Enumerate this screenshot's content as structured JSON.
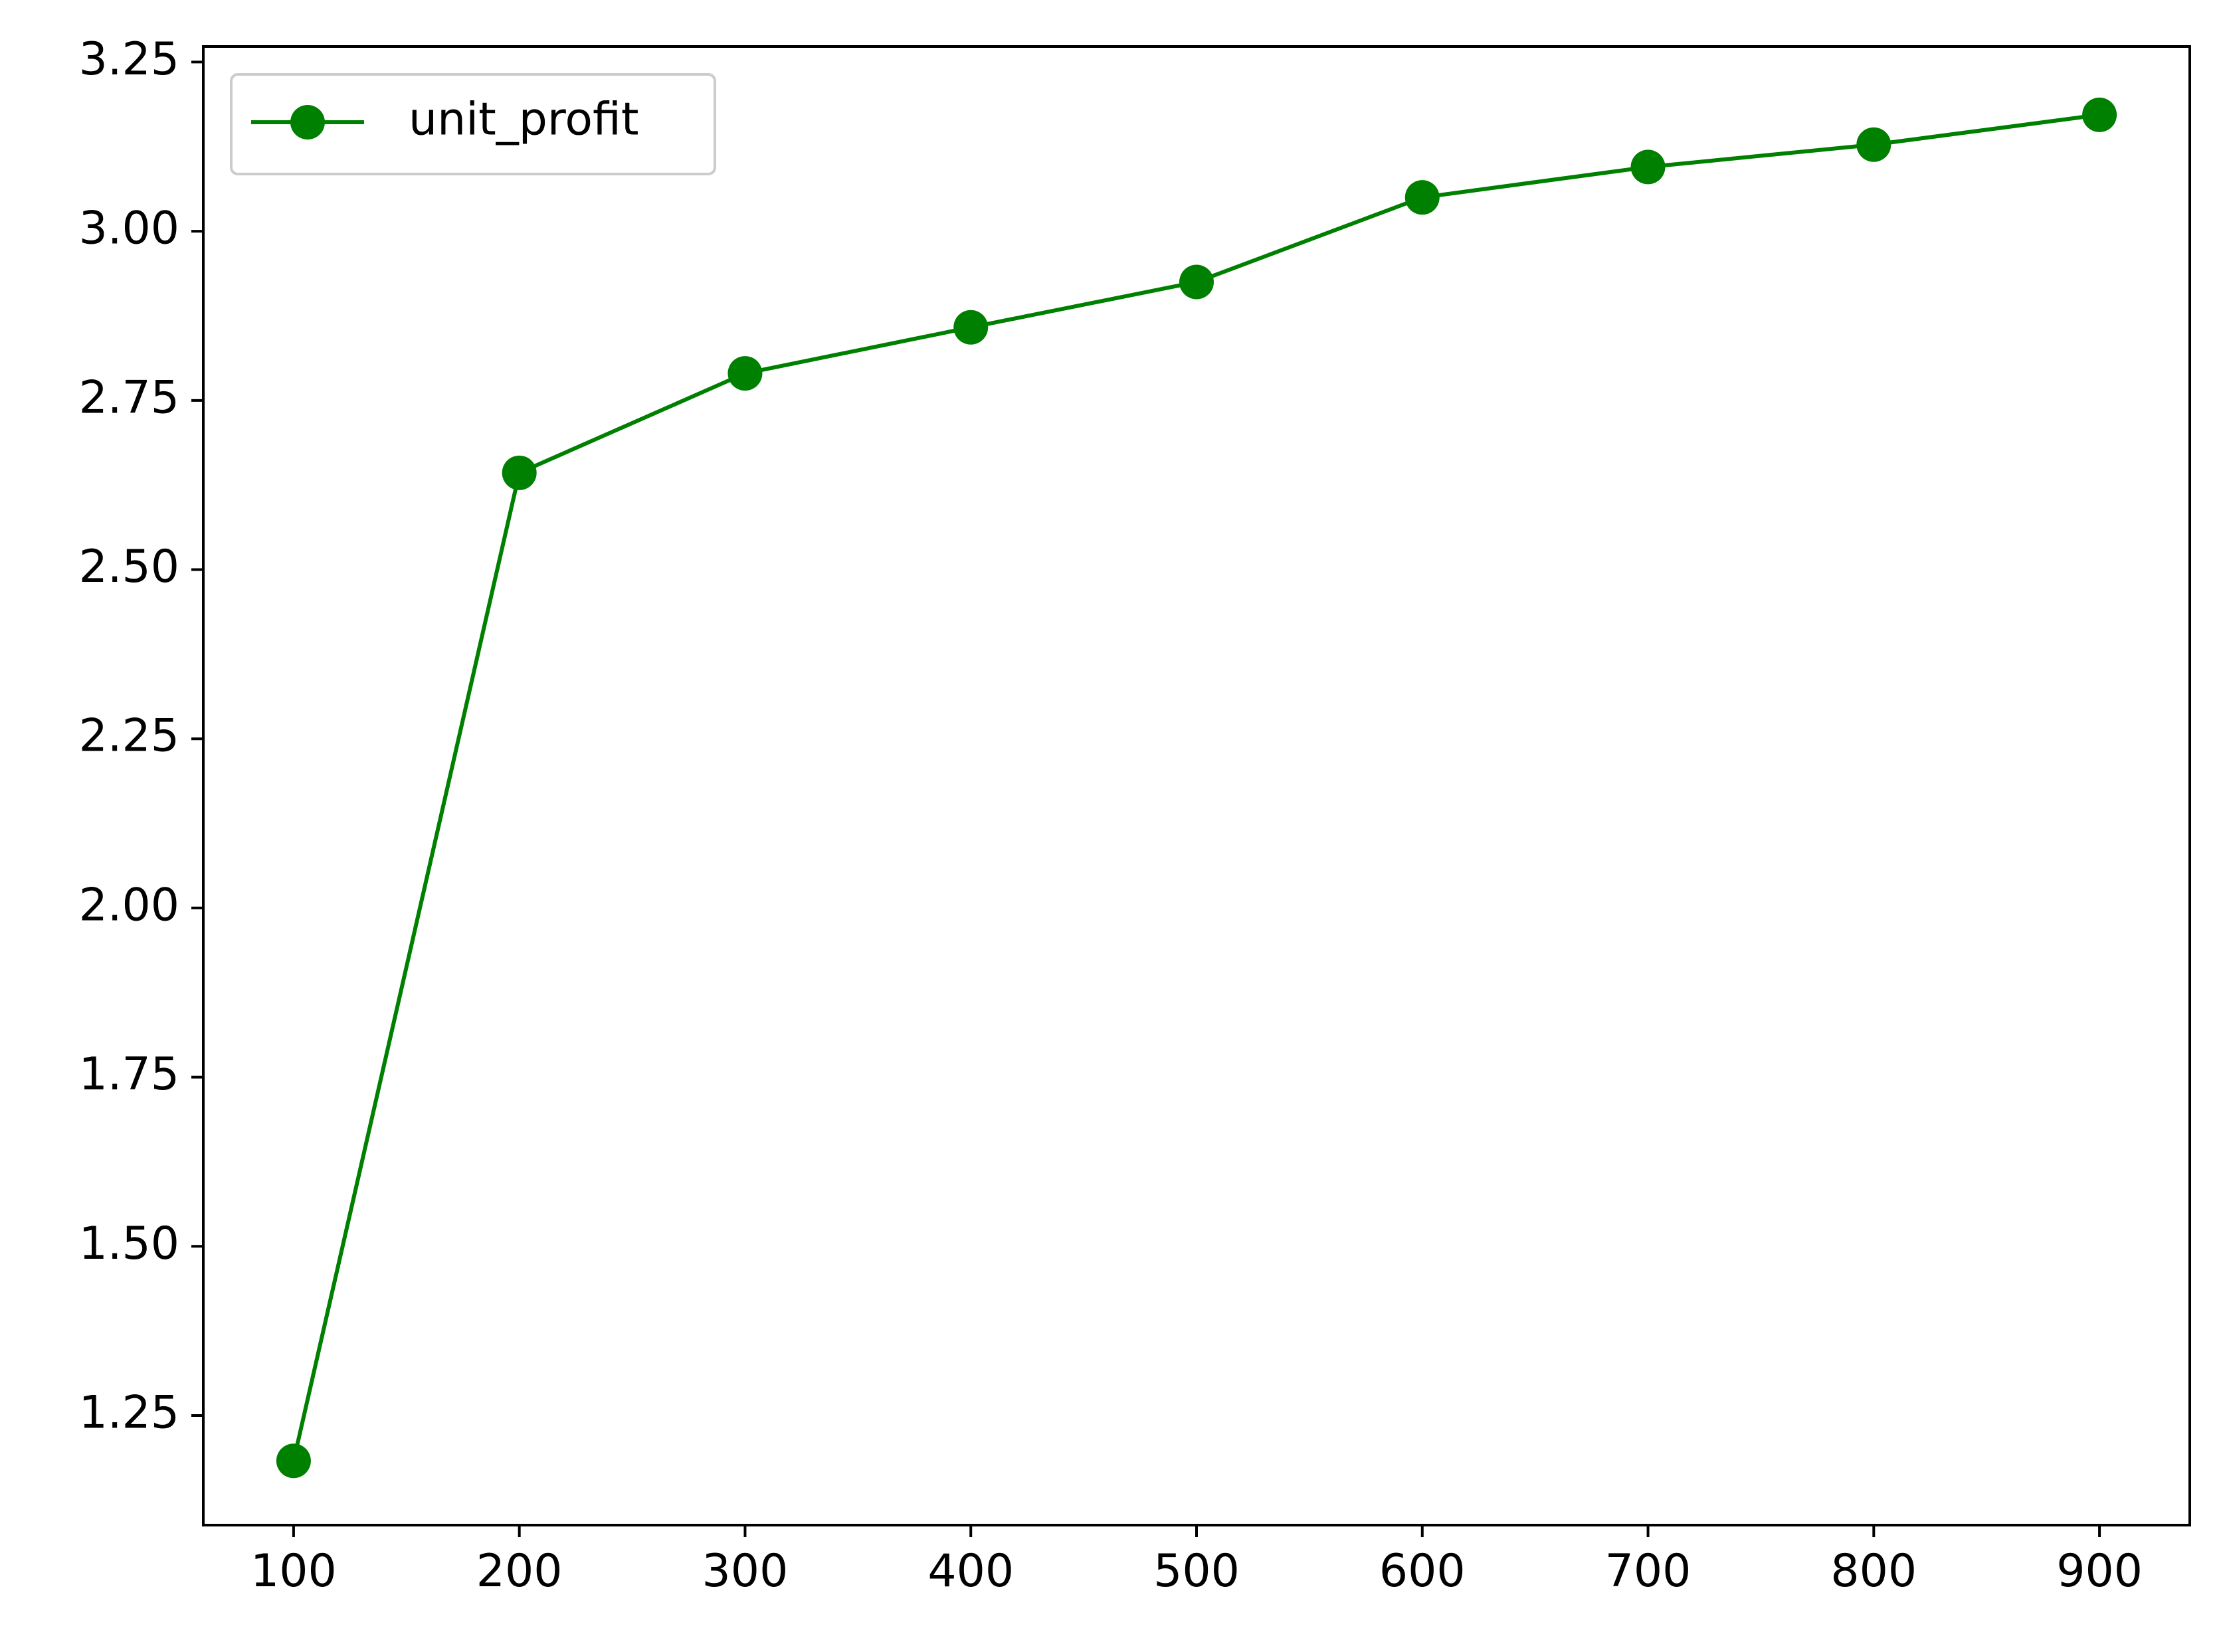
{
  "chart_data": {
    "type": "line",
    "x": [
      100,
      200,
      300,
      400,
      500,
      600,
      700,
      800,
      900
    ],
    "series": [
      {
        "name": "unit_profit",
        "values": [
          1.183,
          2.643,
          2.79,
          2.858,
          2.925,
          3.05,
          3.095,
          3.128,
          3.172
        ],
        "color": "#008000",
        "marker": "circle"
      }
    ],
    "xticks": [
      "100",
      "200",
      "300",
      "400",
      "500",
      "600",
      "700",
      "800",
      "900"
    ],
    "yticks": [
      "1.25",
      "1.50",
      "1.75",
      "2.00",
      "2.25",
      "2.50",
      "2.75",
      "3.00",
      "3.25"
    ],
    "xlim": [
      60,
      940
    ],
    "ylim": [
      1.088,
      3.273
    ],
    "grid": false,
    "legend": "top-left",
    "title": "",
    "xlabel": "",
    "ylabel": ""
  }
}
